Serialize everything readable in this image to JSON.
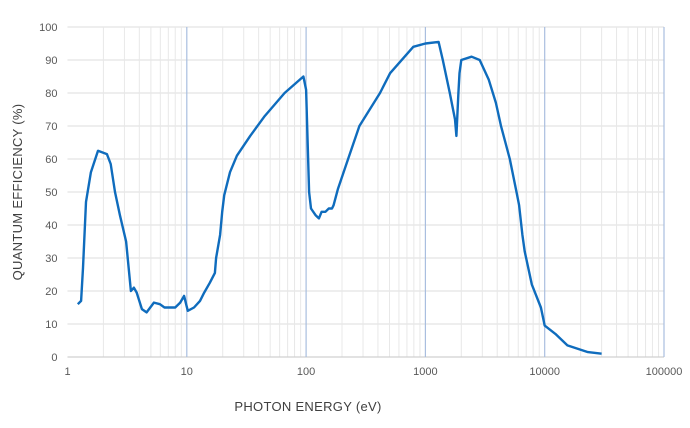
{
  "chart_data": {
    "type": "line",
    "title": "",
    "xlabel": "PHOTON ENERGY (eV)",
    "ylabel": "QUANTUM EFFICIENCY (%)",
    "x_scale": "log",
    "xlim": [
      1,
      100000
    ],
    "ylim": [
      0,
      100
    ],
    "x_ticks": [
      "1",
      "10",
      "100",
      "1000",
      "10000",
      "100000"
    ],
    "y_ticks": [
      "0",
      "10",
      "20",
      "30",
      "40",
      "50",
      "60",
      "70",
      "80",
      "90",
      "100"
    ],
    "grid": true,
    "legend": "none",
    "colors": {
      "line": "#0f6cbd",
      "major_grid": "#a9bedf",
      "minor_grid": "#e8e8e8"
    },
    "series": [
      {
        "x": [
          1.22,
          1.3,
          1.35,
          1.43,
          1.57,
          1.8,
          2.14,
          2.3,
          2.5,
          2.75,
          3.1,
          3.4,
          3.6,
          3.8,
          4.2,
          4.6,
          5.3,
          5.95,
          6.5,
          8.0,
          8.8,
          9.5,
          10.2,
          11.5,
          12.9,
          14,
          15.6,
          17.2,
          17.6,
          19,
          19.8,
          20.6,
          23,
          26.3,
          34,
          45,
          66,
          95,
          100,
          106,
          110,
          120,
          128,
          135,
          145,
          155,
          165,
          170,
          185,
          225,
          280,
          416,
          506,
          792,
          1000,
          1290,
          1400,
          1600,
          1770,
          1820,
          1890,
          1930,
          2000,
          2440,
          2850,
          3400,
          3900,
          4300,
          5100,
          5800,
          6100,
          6500,
          6800,
          7800,
          9300,
          10000,
          12300,
          15500,
          23000,
          30000
        ],
        "y": [
          16,
          17,
          27,
          47,
          56,
          62.5,
          61.5,
          58.5,
          50,
          43,
          35,
          20,
          21,
          19.5,
          14.5,
          13.5,
          16.5,
          16,
          15,
          15,
          16.5,
          18.5,
          14,
          15,
          17,
          19.5,
          22.5,
          25.5,
          30,
          37,
          44,
          49,
          56,
          61,
          67,
          73,
          80,
          85,
          81,
          50,
          45,
          43,
          42,
          44,
          44,
          45,
          45,
          46,
          51,
          60,
          70,
          80,
          86,
          94,
          95,
          95.5,
          90,
          80,
          72,
          67,
          80,
          86,
          90,
          91,
          90,
          84,
          77,
          70,
          60,
          50,
          46,
          37,
          32,
          22,
          15,
          9.5,
          7,
          3.5,
          1.5,
          1
        ]
      }
    ]
  }
}
